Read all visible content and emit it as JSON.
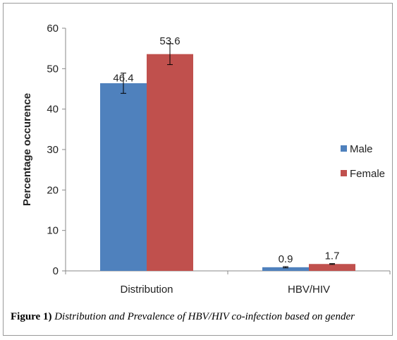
{
  "chart_data": {
    "type": "bar",
    "categories": [
      "Distribution",
      "HBV/HIV"
    ],
    "series": [
      {
        "name": "Male",
        "color": "#4F81BD",
        "values": [
          46.4,
          0.9
        ],
        "error": [
          2.5,
          0.15
        ]
      },
      {
        "name": "Female",
        "color": "#C0504D",
        "values": [
          53.6,
          1.7
        ],
        "error": [
          2.6,
          0.1
        ]
      }
    ],
    "data_labels": [
      "46.4",
      "53.6",
      "0.9",
      "1.7"
    ],
    "ylabel": "Percentage occurence",
    "xlabel": "",
    "ylim": [
      0,
      60
    ],
    "yticks": [
      0,
      10,
      20,
      30,
      40,
      50,
      60
    ],
    "grid": false,
    "legend_position": "right"
  },
  "caption": {
    "label": "Figure 1)",
    "text": "Distribution and Prevalence of HBV/HIV co-infection based on gender"
  }
}
